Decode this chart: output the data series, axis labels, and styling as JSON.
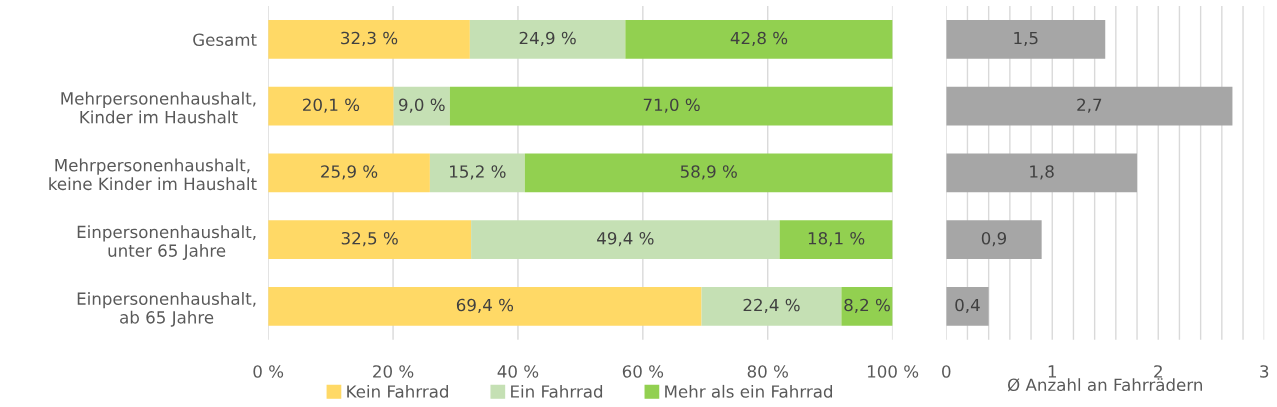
{
  "chart_data": [
    {
      "type": "bar",
      "orientation": "horizontal",
      "stacked": true,
      "categories": [
        "Gesamt",
        "Mehrpersonenhaushalt,\nKinder im Haushalt",
        "Mehrpersonenhaushalt,\nkeine Kinder im Haushalt",
        "Einpersonenhaushalt,\nunter 65 Jahre",
        "Einpersonenhaushalt,\nab 65 Jahre"
      ],
      "series": [
        {
          "name": "Kein Fahrrad",
          "color": "#ffd966",
          "values": [
            32.3,
            20.1,
            25.9,
            32.5,
            69.4
          ],
          "value_labels": [
            "32,3 %",
            "20,1 %",
            "25,9 %",
            "32,5 %",
            "69,4 %"
          ]
        },
        {
          "name": "Ein Fahrrad",
          "color": "#c5e0b4",
          "values": [
            24.9,
            9.0,
            15.2,
            49.4,
            22.4
          ],
          "value_labels": [
            "24,9 %",
            "9,0 %",
            "15,2 %",
            "49,4 %",
            "22,4 %"
          ]
        },
        {
          "name": "Mehr als ein Fahrrad",
          "color": "#92d050",
          "values": [
            42.8,
            71.0,
            58.9,
            18.1,
            8.2
          ],
          "value_labels": [
            "42,8 %",
            "71,0 %",
            "58,9 %",
            "18,1 %",
            "8,2 %"
          ]
        }
      ],
      "xlim": [
        0,
        100
      ],
      "xticks": [
        {
          "value": 0,
          "label": "0 %"
        },
        {
          "value": 20,
          "label": "20 %"
        },
        {
          "value": 40,
          "label": "40 %"
        },
        {
          "value": 60,
          "label": "60 %"
        },
        {
          "value": 80,
          "label": "80 %"
        },
        {
          "value": 100,
          "label": "100 %"
        }
      ],
      "grid": "x",
      "legend": "bottom"
    },
    {
      "type": "bar",
      "orientation": "horizontal",
      "xlabel": "Ø Anzahl an Fahrrädern",
      "categories": [
        null,
        null,
        null,
        null,
        null
      ],
      "series": [
        {
          "color": "#a6a6a6",
          "values": [
            1.5,
            2.7,
            1.8,
            0.9,
            0.4
          ],
          "value_labels": [
            "1,5",
            "2,7",
            "1,8",
            "0,9",
            "0,4"
          ]
        }
      ],
      "xlim": [
        0,
        3
      ],
      "xticks": [
        0,
        {
          "value": 0.2,
          "label": null
        },
        {
          "value": 0.4,
          "label": null
        },
        {
          "value": 0.6,
          "label": null
        },
        {
          "value": 0.8,
          "label": null
        },
        1,
        {
          "value": 1.2,
          "label": null
        },
        {
          "value": 1.4,
          "label": null
        },
        {
          "value": 1.6,
          "label": null
        },
        {
          "value": 1.8,
          "label": null
        },
        2,
        {
          "value": 2.2,
          "label": null
        },
        {
          "value": 2.4,
          "label": null
        },
        {
          "value": 2.6,
          "label": null
        },
        {
          "value": 2.8,
          "label": null
        },
        3
      ],
      "grid": "x"
    }
  ]
}
